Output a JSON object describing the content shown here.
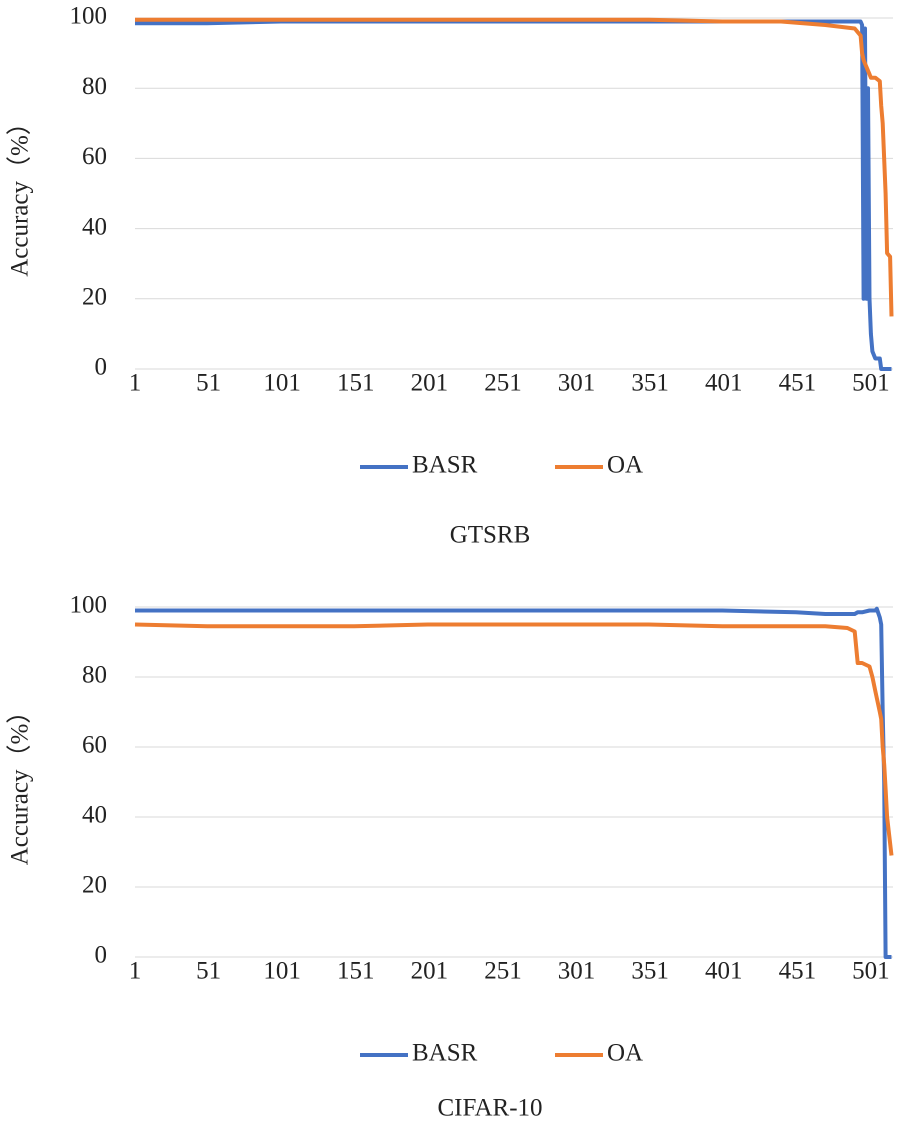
{
  "chart_data": [
    {
      "type": "line",
      "title": "GTSRB",
      "y_label": "Accuracy（%）",
      "x": [
        1,
        50,
        100,
        150,
        200,
        250,
        300,
        350,
        400,
        440,
        470,
        490,
        494,
        495,
        496,
        497,
        498,
        499,
        500,
        501,
        502,
        504,
        507,
        508,
        509,
        511,
        512,
        514,
        515
      ],
      "series": [
        {
          "name": "BASR",
          "color": "#4472c4",
          "values": [
            98.5,
            98.5,
            99,
            99,
            99,
            99,
            99,
            99,
            99,
            99,
            99,
            99,
            99,
            98,
            20,
            97,
            20,
            80,
            20,
            10,
            5,
            3,
            3,
            0,
            0,
            0,
            0,
            0,
            0
          ]
        },
        {
          "name": "OA",
          "color": "#ed7d31",
          "values": [
            99.5,
            99.5,
            99.5,
            99.5,
            99.5,
            99.5,
            99.5,
            99.5,
            99,
            99,
            98,
            97,
            95,
            90,
            88,
            87,
            86,
            85,
            84,
            83,
            83,
            83,
            82,
            75,
            70,
            50,
            33,
            32,
            15
          ]
        }
      ],
      "xlim": [
        1,
        516
      ],
      "xticks": [
        1,
        51,
        101,
        151,
        201,
        251,
        301,
        351,
        401,
        451,
        501
      ],
      "ylim": [
        0,
        100
      ],
      "yticks": [
        0,
        20,
        40,
        60,
        80,
        100
      ],
      "grid": true,
      "legend": "bottom"
    },
    {
      "type": "line",
      "title": "CIFAR-10",
      "y_label": "Accuracy（%）",
      "x": [
        1,
        50,
        100,
        150,
        200,
        250,
        300,
        350,
        400,
        450,
        470,
        485,
        490,
        492,
        495,
        500,
        502,
        504,
        505,
        507,
        508,
        509,
        510,
        511,
        512,
        515
      ],
      "series": [
        {
          "name": "BASR",
          "color": "#4472c4",
          "values": [
            99,
            99,
            99,
            99,
            99,
            99,
            99,
            99,
            99,
            98.5,
            98,
            98,
            98,
            98.5,
            98.5,
            99,
            99,
            99,
            99.5,
            97,
            95,
            70,
            50,
            0,
            0,
            0
          ]
        },
        {
          "name": "OA",
          "color": "#ed7d31",
          "values": [
            95,
            94.5,
            94.5,
            94.5,
            95,
            95,
            95,
            95,
            94.5,
            94.5,
            94.5,
            94,
            93,
            84,
            84,
            83,
            80,
            76,
            74,
            70,
            68,
            60,
            55,
            48,
            40,
            29
          ]
        }
      ],
      "xlim": [
        1,
        516
      ],
      "xticks": [
        1,
        51,
        101,
        151,
        201,
        251,
        301,
        351,
        401,
        451,
        501
      ],
      "ylim": [
        0,
        100
      ],
      "yticks": [
        0,
        20,
        40,
        60,
        80,
        100
      ],
      "grid": true,
      "legend": "bottom"
    }
  ]
}
